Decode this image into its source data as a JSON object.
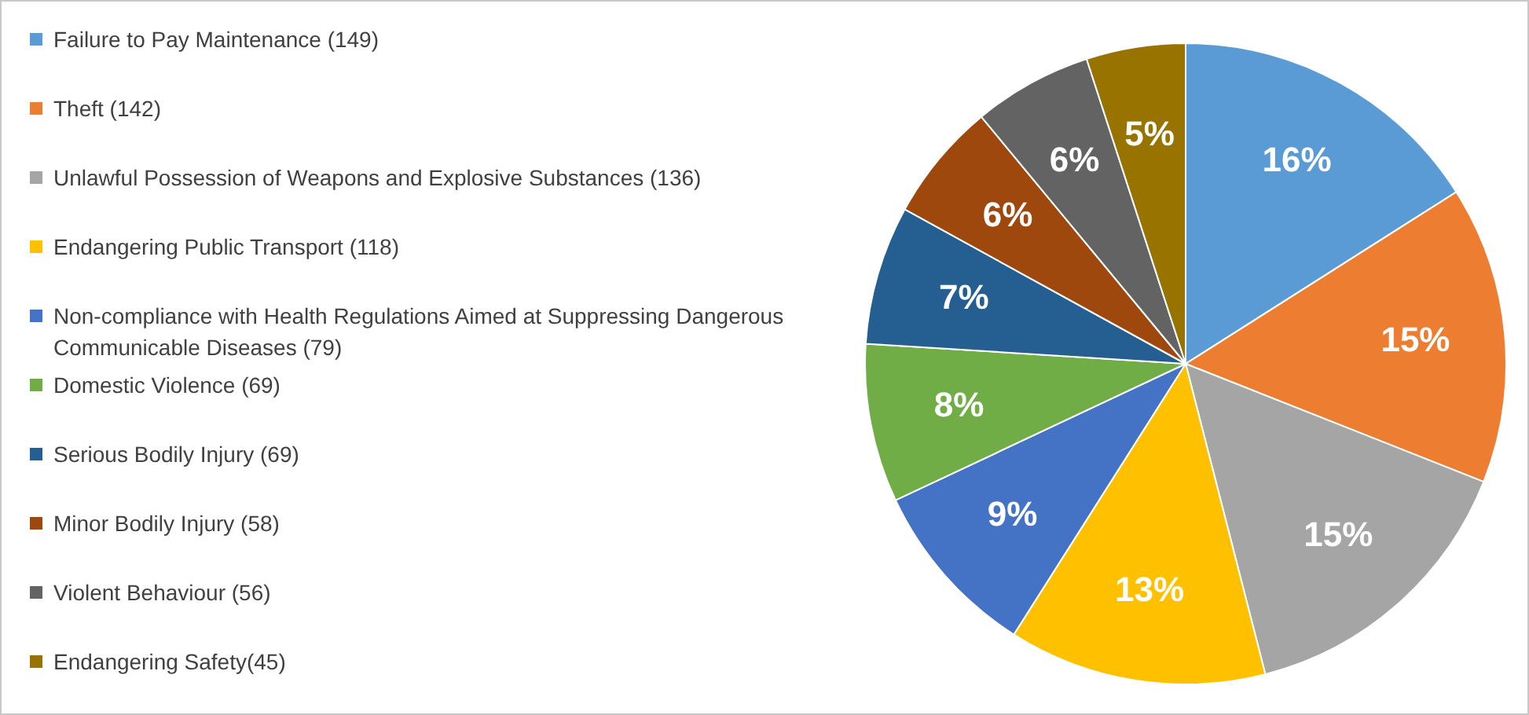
{
  "chart_data": {
    "type": "pie",
    "categories": [
      "Failure to Pay Maintenance (149)",
      "Theft (142)",
      "Unlawful Possession of Weapons and Explosive Substances (136)",
      "Endangering Public Transport (118)",
      "Non-compliance with Health Regulations Aimed at Suppressing Dangerous Communicable Diseases (79)",
      "Domestic Violence (69)",
      "Serious Bodily Injury (69)",
      "Minor Bodily Injury (58)",
      "Violent Behaviour (56)",
      "Endangering Safety(45)"
    ],
    "values": [
      16,
      15,
      15,
      13,
      9,
      8,
      7,
      6,
      6,
      5
    ],
    "colors": [
      "#5b9bd5",
      "#ed7d31",
      "#a5a5a5",
      "#ffc000",
      "#4472c4",
      "#70ad47",
      "#255e91",
      "#9e480e",
      "#636363",
      "#997300"
    ],
    "value_labels": [
      "16%",
      "15%",
      "15%",
      "13%",
      "9%",
      "8%",
      "7%",
      "6%",
      "6%",
      "5%"
    ],
    "legend": "left"
  }
}
